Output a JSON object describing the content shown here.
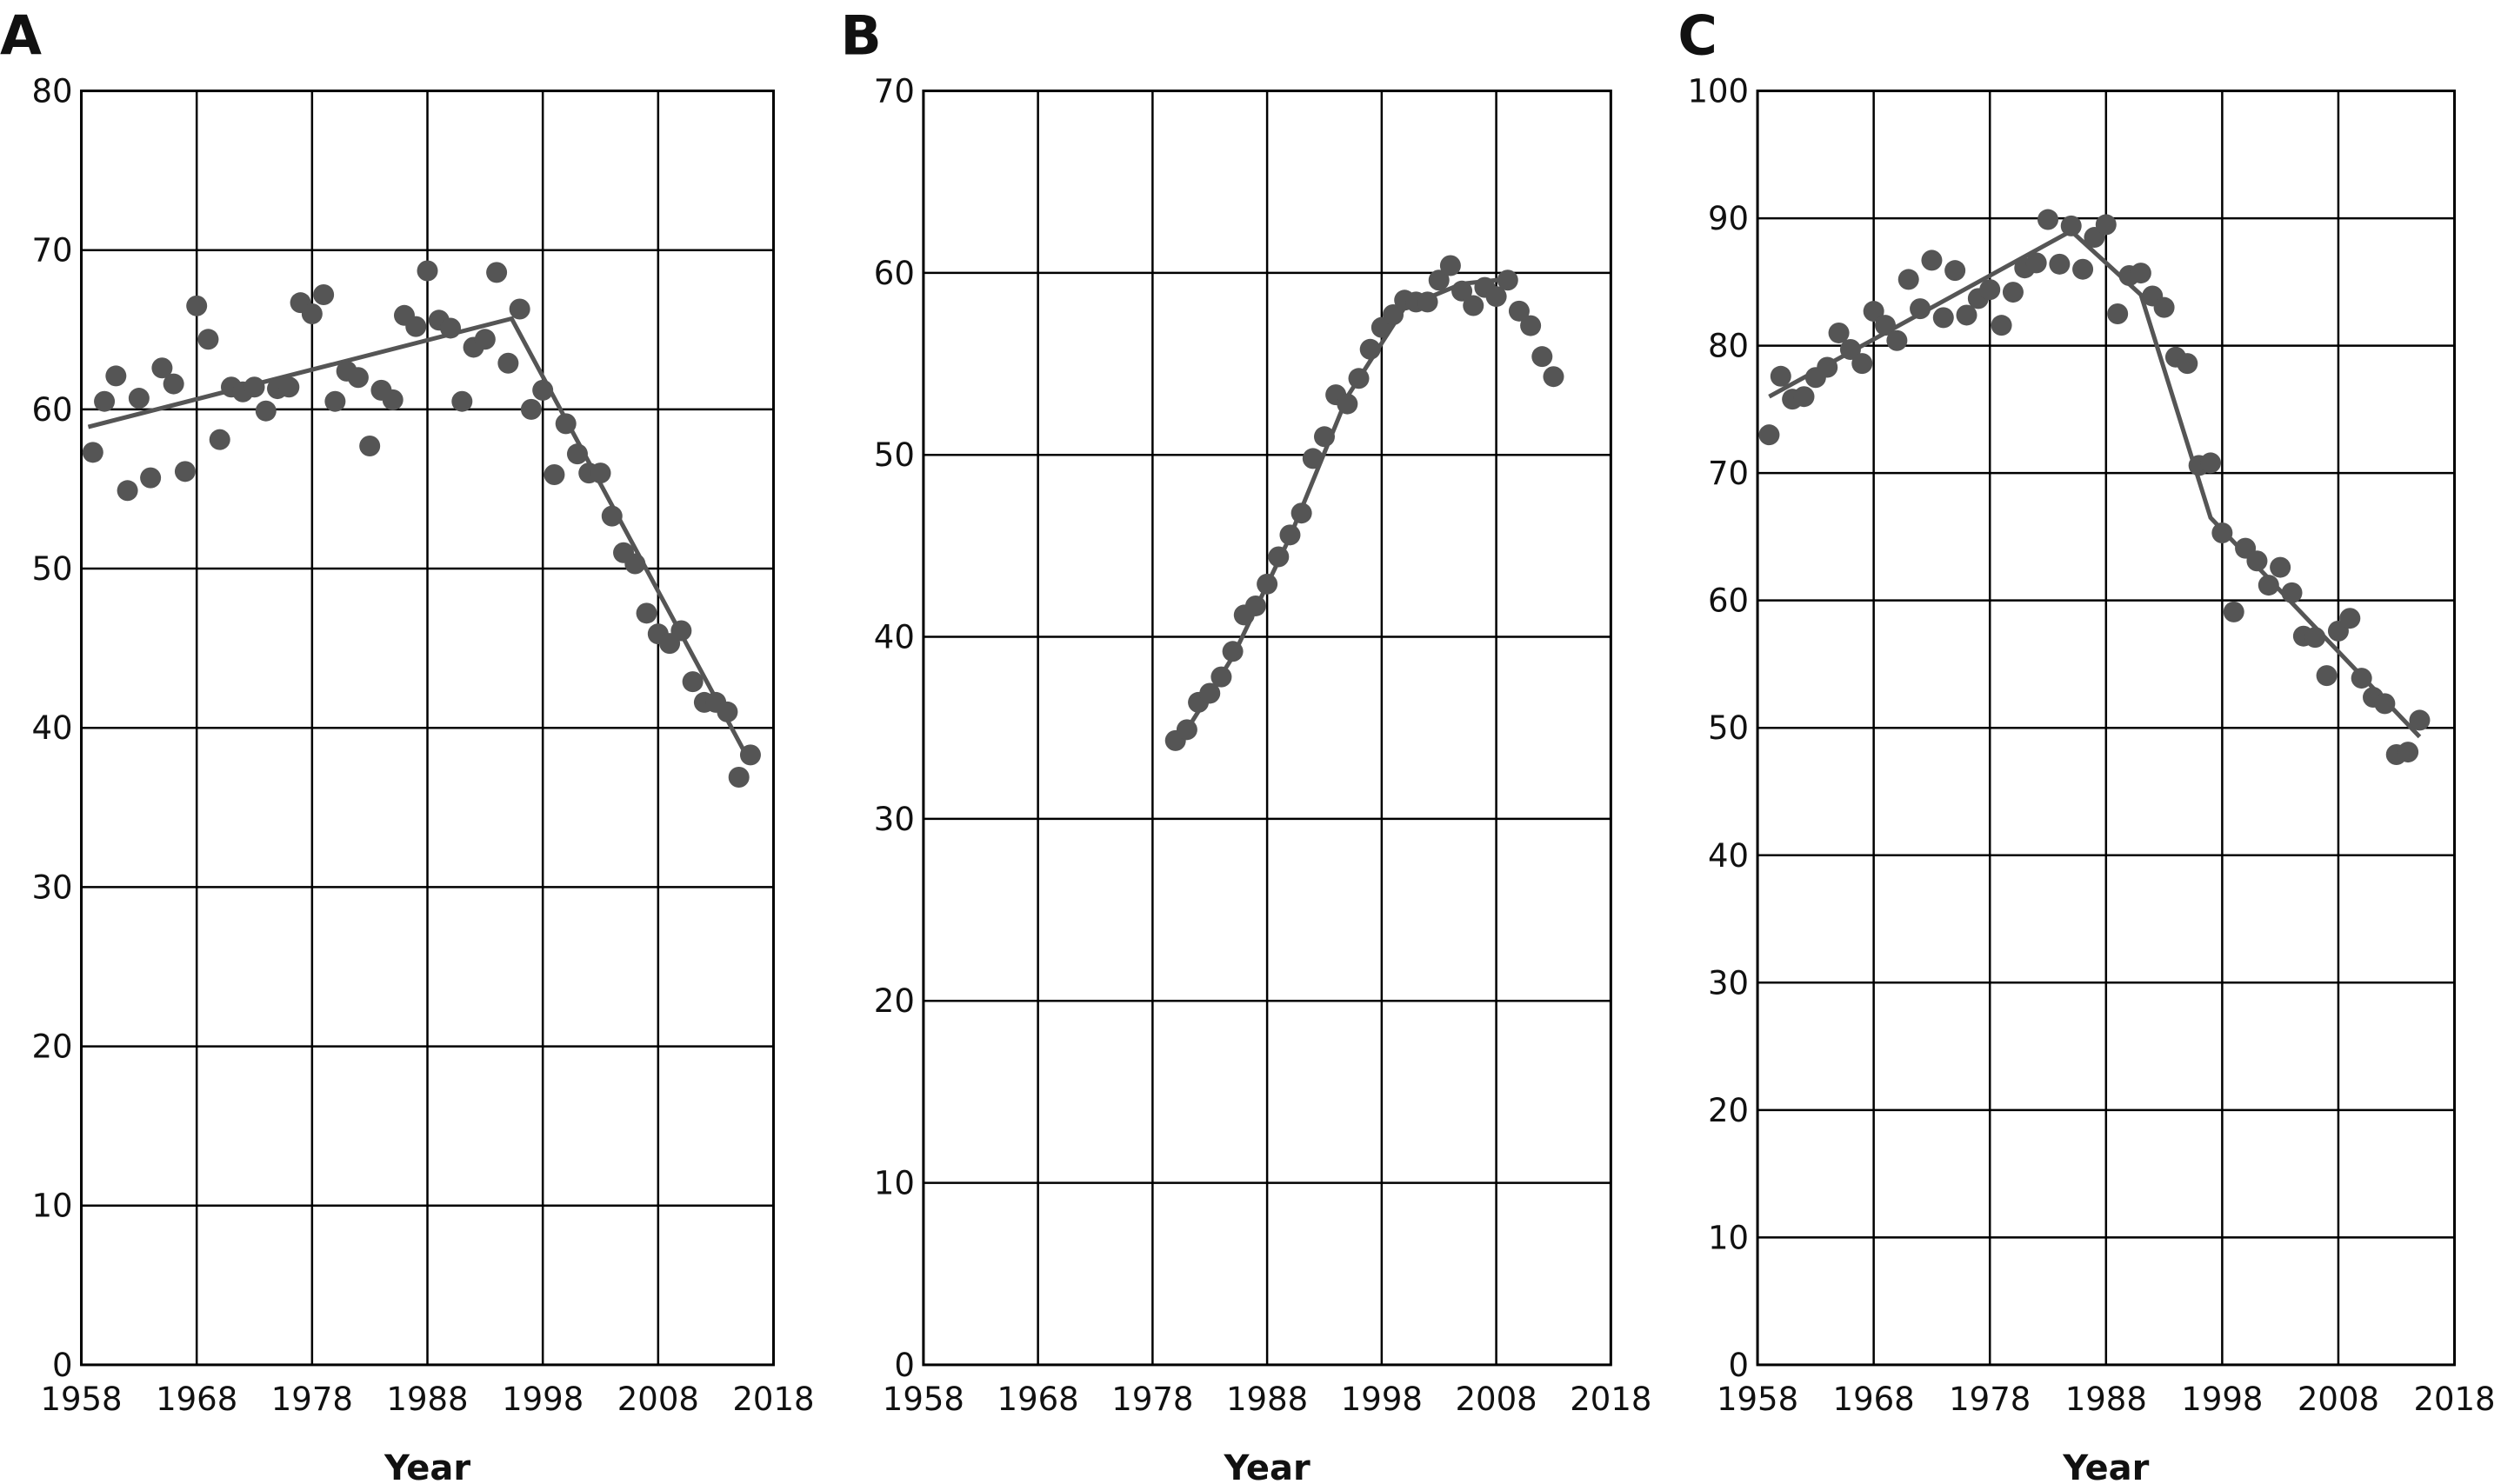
{
  "chart_data": [
    {
      "type": "scatter",
      "panel": "A",
      "x_label": "Year",
      "color": "#555555",
      "grid": true,
      "xlim": [
        1958,
        2018
      ],
      "xticks": [
        1958,
        1968,
        1978,
        1988,
        1998,
        2008,
        2018
      ],
      "ylim": [
        0,
        80
      ],
      "yticks": [
        0,
        10,
        20,
        30,
        40,
        50,
        60,
        70,
        80
      ],
      "x": [
        1959,
        1960,
        1961,
        1962,
        1963,
        1964,
        1965,
        1966,
        1967,
        1968,
        1969,
        1970,
        1971,
        1972,
        1973,
        1974,
        1975,
        1976,
        1977,
        1978,
        1979,
        1980,
        1981,
        1982,
        1983,
        1984,
        1985,
        1986,
        1987,
        1988,
        1989,
        1990,
        1991,
        1992,
        1993,
        1994,
        1995,
        1996,
        1997,
        1998,
        1999,
        2000,
        2001,
        2002,
        2003,
        2004,
        2005,
        2006,
        2007,
        2008,
        2009,
        2010,
        2011,
        2012,
        2013,
        2014,
        2015,
        2016
      ],
      "values": [
        57.3,
        60.5,
        62.1,
        54.9,
        60.7,
        55.7,
        62.6,
        61.6,
        56.1,
        66.5,
        64.4,
        58.1,
        61.4,
        61.1,
        61.4,
        59.9,
        61.3,
        61.4,
        66.7,
        66.0,
        67.2,
        60.5,
        62.4,
        62.0,
        57.7,
        61.2,
        60.6,
        65.9,
        65.2,
        68.7,
        65.6,
        65.1,
        60.5,
        63.9,
        64.4,
        68.6,
        62.9,
        66.3,
        60.0,
        61.2,
        55.9,
        59.1,
        57.2,
        56.0,
        56.0,
        53.3,
        51.0,
        50.3,
        47.2,
        45.9,
        45.3,
        46.1,
        42.9,
        41.6,
        41.6,
        41.0,
        36.9,
        38.3
      ],
      "fit": {
        "x": [
          1958.6,
          1995.3,
          2016
        ],
        "values": [
          58.9,
          65.7,
          37.8
        ]
      }
    },
    {
      "type": "scatter",
      "panel": "B",
      "x_label": "Year",
      "color": "#555555",
      "grid": true,
      "xlim": [
        1958,
        2018
      ],
      "xticks": [
        1958,
        1968,
        1978,
        1988,
        1998,
        2008,
        2018
      ],
      "ylim": [
        0,
        70
      ],
      "yticks": [
        0,
        10,
        20,
        30,
        40,
        50,
        60,
        70
      ],
      "x": [
        1980,
        1981,
        1982,
        1983,
        1984,
        1985,
        1986,
        1987,
        1988,
        1989,
        1990,
        1991,
        1992,
        1993,
        1994,
        1995,
        1996,
        1997,
        1998,
        1999,
        2000,
        2001,
        2002,
        2003,
        2004,
        2005,
        2006,
        2007,
        2008,
        2009,
        2010,
        2011,
        2012,
        2013
      ],
      "values": [
        34.3,
        34.9,
        36.4,
        36.9,
        37.8,
        39.2,
        41.2,
        41.7,
        42.9,
        44.4,
        45.6,
        46.8,
        49.8,
        51.0,
        53.3,
        52.8,
        54.2,
        55.8,
        57.0,
        57.7,
        58.5,
        58.4,
        58.4,
        59.6,
        60.4,
        59.0,
        58.2,
        59.2,
        58.7,
        59.6,
        57.9,
        57.1,
        55.4,
        54.3
      ],
      "fit": {
        "x": [
          1980,
          1985,
          1990,
          1995,
          2000,
          2005,
          2009.5
        ],
        "values": [
          33.9,
          38.9,
          45.5,
          53.2,
          58.1,
          59.4,
          59.7
        ]
      }
    },
    {
      "type": "scatter",
      "panel": "C",
      "x_label": "Year",
      "color": "#555555",
      "grid": true,
      "xlim": [
        1958,
        2018
      ],
      "xticks": [
        1958,
        1968,
        1978,
        1988,
        1998,
        2008,
        2018
      ],
      "ylim": [
        0,
        100
      ],
      "yticks": [
        0,
        10,
        20,
        30,
        40,
        50,
        60,
        70,
        80,
        90,
        100
      ],
      "x": [
        1959,
        1960,
        1961,
        1962,
        1963,
        1964,
        1965,
        1966,
        1967,
        1968,
        1969,
        1970,
        1971,
        1972,
        1973,
        1974,
        1975,
        1976,
        1977,
        1978,
        1979,
        1980,
        1981,
        1982,
        1983,
        1984,
        1985,
        1986,
        1987,
        1988,
        1989,
        1990,
        1991,
        1992,
        1993,
        1994,
        1995,
        1996,
        1997,
        1998,
        1999,
        2000,
        2001,
        2002,
        2003,
        2004,
        2005,
        2006,
        2007,
        2008,
        2009,
        2010,
        2011,
        2012,
        2013,
        2014,
        2015
      ],
      "values": [
        73.0,
        77.6,
        75.8,
        76.0,
        77.5,
        78.3,
        81.0,
        79.7,
        78.6,
        82.7,
        81.6,
        80.4,
        85.2,
        82.9,
        86.7,
        82.2,
        85.9,
        82.4,
        83.7,
        84.4,
        81.6,
        84.2,
        86.1,
        86.5,
        89.9,
        86.4,
        89.4,
        86.0,
        88.5,
        89.5,
        82.5,
        85.5,
        85.7,
        83.9,
        83.0,
        79.1,
        78.6,
        70.6,
        70.8,
        65.3,
        59.1,
        64.1,
        63.1,
        61.2,
        62.6,
        60.6,
        57.2,
        57.1,
        54.1,
        57.6,
        58.6,
        53.9,
        52.4,
        51.9,
        47.9,
        48.1,
        50.6
      ],
      "fit": {
        "x": [
          1959,
          1985,
          1991,
          1997,
          2015
        ],
        "values": [
          76,
          89,
          84,
          66.5,
          49.3
        ]
      }
    }
  ]
}
